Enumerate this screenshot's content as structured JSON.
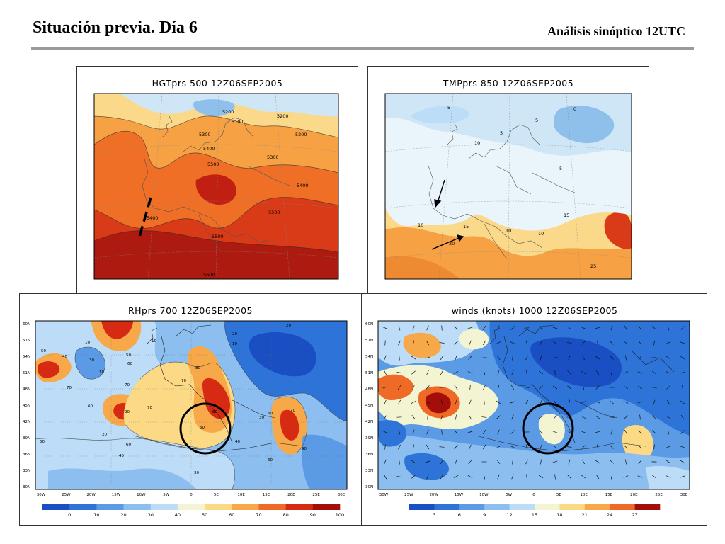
{
  "header": {
    "title": "Situación previa. Día 6",
    "subtitle": "Análisis sinóptico 12UTC"
  },
  "panels": {
    "hgt": {
      "title": "HGTprs 500 12Z06SEP2005",
      "contour_labels": [
        "5200",
        "5100",
        "5200",
        "5200",
        "5300",
        "5300",
        "5400",
        "5500",
        "5400",
        "5400",
        "5500",
        "5500",
        "5600"
      ]
    },
    "tmp": {
      "title": "TMPprs 850 12Z06SEP2005",
      "contour_labels": [
        "5",
        "5",
        "5",
        "0",
        "5",
        "10",
        "10",
        "10",
        "15",
        "20",
        "10",
        "15",
        "25"
      ]
    },
    "rh": {
      "title": "RHprs 700 12Z06SEP2005",
      "y_ticks": [
        "60N",
        "57N",
        "54N",
        "51N",
        "48N",
        "45N",
        "42N",
        "39N",
        "36N",
        "33N",
        "30N"
      ],
      "x_ticks": [
        "30W",
        "25W",
        "20W",
        "15W",
        "10W",
        "5W",
        "0",
        "5E",
        "10E",
        "15E",
        "20E",
        "25E",
        "30E"
      ],
      "colorbar_labels": [
        "0",
        "10",
        "20",
        "30",
        "40",
        "50",
        "60",
        "70",
        "80",
        "90",
        "100"
      ],
      "colorbar_colors": [
        "#1a4fc4",
        "#2e74d8",
        "#5b9be6",
        "#8cbef0",
        "#bcdcf7",
        "#f3f5d2",
        "#fbd985",
        "#f7a94a",
        "#ef6a26",
        "#d62a12",
        "#a30d0a"
      ],
      "contour_labels": [
        "10",
        "40",
        "50",
        "30",
        "50",
        "60",
        "70",
        "10",
        "60",
        "10",
        "70",
        "80",
        "70",
        "90",
        "20",
        "70",
        "60",
        "80",
        "50",
        "70",
        "60",
        "40",
        "30",
        "20",
        "10",
        "20",
        "60",
        "90",
        "50",
        "30",
        "40"
      ]
    },
    "wind": {
      "title": "winds (knots) 1000 12Z06SEP2005",
      "y_ticks": [
        "60N",
        "57N",
        "54N",
        "51N",
        "48N",
        "45N",
        "42N",
        "39N",
        "36N",
        "33N",
        "30N"
      ],
      "x_ticks": [
        "30W",
        "25W",
        "20W",
        "15W",
        "10W",
        "5W",
        "0",
        "5E",
        "10E",
        "15E",
        "20E",
        "25E",
        "30E"
      ],
      "colorbar_labels": [
        "3",
        "6",
        "9",
        "12",
        "15",
        "18",
        "21",
        "24",
        "27"
      ],
      "colorbar_colors": [
        "#1a4fc4",
        "#2e74d8",
        "#5b9be6",
        "#8cbef0",
        "#bcdcf7",
        "#f3f5d2",
        "#fbd985",
        "#f7a94a",
        "#ef6a26",
        "#a30d0a"
      ]
    }
  }
}
